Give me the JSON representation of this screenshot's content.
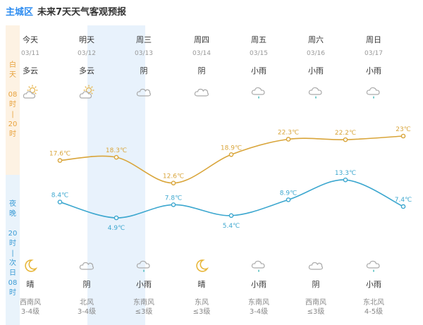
{
  "header": {
    "city": "主城区",
    "title": "未来7天天气客观预报"
  },
  "side": {
    "day_label": [
      "白",
      "天",
      "",
      "08",
      "时",
      "|",
      "20",
      "时"
    ],
    "night_label": [
      "夜",
      "晚",
      "",
      "20",
      "时",
      "|",
      "次",
      "日",
      "08",
      "时"
    ]
  },
  "colors": {
    "day_line": "#d9a53a",
    "night_line": "#3ca7cf",
    "highlight": "#e8f2fc"
  },
  "days": [
    {
      "name": "今天",
      "date": "03/11",
      "day_weather": "多云",
      "day_icon": "sun-cloud-icon",
      "night_weather": "晴",
      "night_icon": "moon-icon",
      "wind_dir": "西南风",
      "wind_level": "3-4级"
    },
    {
      "name": "明天",
      "date": "03/12",
      "day_weather": "多云",
      "day_icon": "sun-cloud-icon",
      "night_weather": "阴",
      "night_icon": "cloud-icon",
      "wind_dir": "北风",
      "wind_level": "3-4级"
    },
    {
      "name": "周三",
      "date": "03/13",
      "day_weather": "阴",
      "day_icon": "cloud-icon",
      "night_weather": "小雨",
      "night_icon": "rain-icon",
      "wind_dir": "东南风",
      "wind_level": "≤3级"
    },
    {
      "name": "周四",
      "date": "03/14",
      "day_weather": "阴",
      "day_icon": "cloud-icon",
      "night_weather": "晴",
      "night_icon": "moon-icon",
      "wind_dir": "东风",
      "wind_level": "≤3级"
    },
    {
      "name": "周五",
      "date": "03/15",
      "day_weather": "小雨",
      "day_icon": "rain-icon",
      "night_weather": "小雨",
      "night_icon": "rain-icon",
      "wind_dir": "东南风",
      "wind_level": "3-4级"
    },
    {
      "name": "周六",
      "date": "03/16",
      "day_weather": "小雨",
      "day_icon": "rain-icon",
      "night_weather": "阴",
      "night_icon": "cloud-icon",
      "wind_dir": "西南风",
      "wind_level": "≤3级"
    },
    {
      "name": "周日",
      "date": "03/17",
      "day_weather": "小雨",
      "day_icon": "rain-icon",
      "night_weather": "小雨",
      "night_icon": "rain-icon",
      "wind_dir": "东北风",
      "wind_level": "4-5级"
    }
  ],
  "chart_data": {
    "type": "line",
    "categories": [
      "03/11",
      "03/12",
      "03/13",
      "03/14",
      "03/15",
      "03/16",
      "03/17"
    ],
    "series": [
      {
        "values": [
          17.6,
          18.3,
          12.6,
          18.9,
          22.3,
          22.2,
          23
        ],
        "labels": [
          "17.6℃",
          "18.3℃",
          "12.6℃",
          "18.9℃",
          "22.3℃",
          "22.2℃",
          "23℃"
        ]
      },
      {
        "values": [
          8.4,
          4.9,
          7.8,
          5.4,
          8.9,
          13.3,
          7.4
        ],
        "labels": [
          "8.4℃",
          "4.9℃",
          "7.8℃",
          "5.4℃",
          "8.9℃",
          "13.3℃",
          "7.4℃"
        ]
      }
    ]
  }
}
